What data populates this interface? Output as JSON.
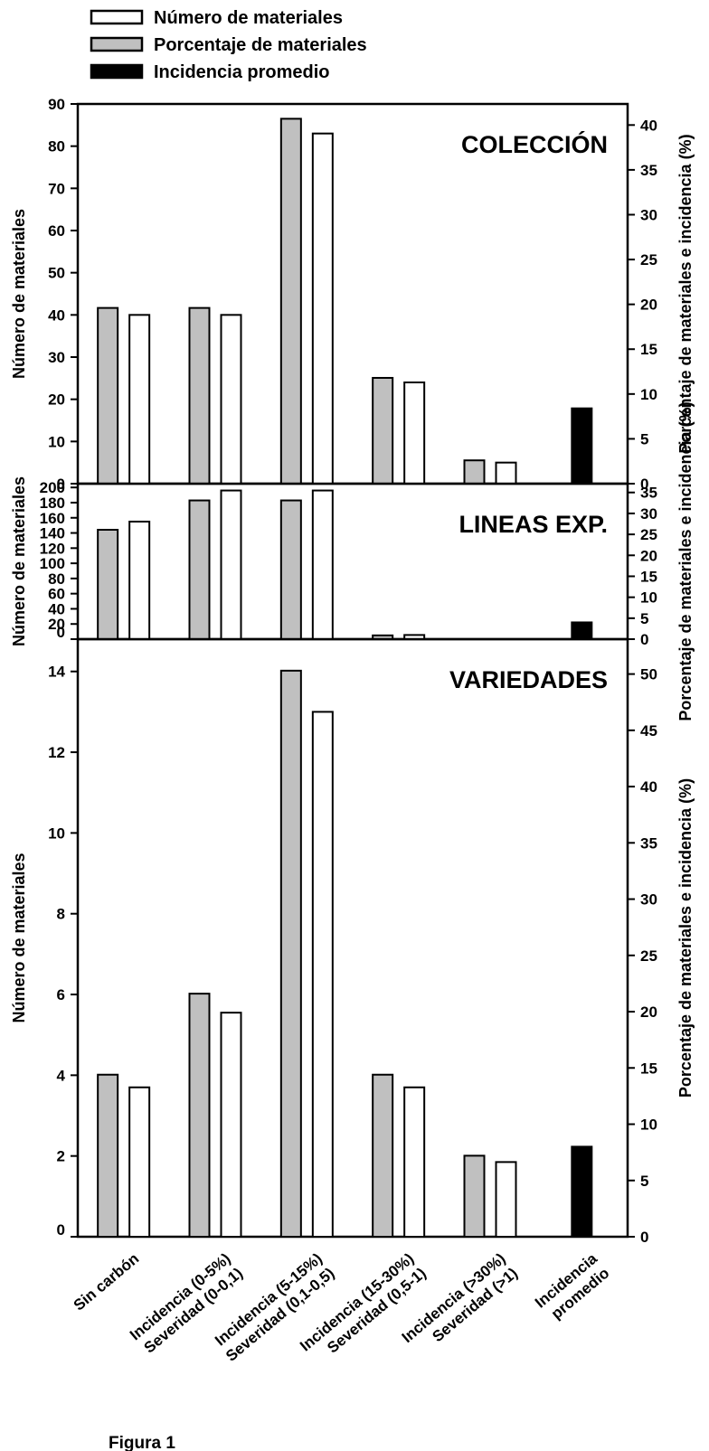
{
  "colors": {
    "number_fill": "#ffffff",
    "percent_fill": "#c0c0c0",
    "incidence_fill": "#000000",
    "stroke": "#000000"
  },
  "legend": [
    {
      "key": "number",
      "label": "Número de materiales"
    },
    {
      "key": "percent",
      "label": "Porcentaje de materiales"
    },
    {
      "key": "incidence",
      "label": "Incidencia promedio"
    }
  ],
  "figure_label": "Figura 1",
  "chart_data": {
    "type": "bar",
    "categories": [
      [
        "Sin carbón"
      ],
      [
        "Incidencia (0-5%)",
        "Severidad (0-0,1)"
      ],
      [
        "Incidencia (5-15%)",
        "Severidad (0,1-0,5)"
      ],
      [
        "Incidencia (15-30%)",
        "Severidad (0,5-1)"
      ],
      [
        "Incidencia (>30%)",
        "Severidad (>1)"
      ],
      [
        "Incidencia",
        "promedio"
      ]
    ],
    "grid": false,
    "legend_position": "top-left",
    "panels": [
      {
        "title": "COLECCIÓN",
        "ylabel": "Número de materiales",
        "y2label": "Porcentaje de materiales e incidencia (%)",
        "ylim": [
          0,
          90
        ],
        "yticks": [
          0,
          10,
          20,
          30,
          40,
          50,
          60,
          70,
          80,
          90
        ],
        "y2lim": [
          0,
          42.35
        ],
        "y2ticks": [
          0,
          5,
          10,
          15,
          20,
          25,
          30,
          35,
          40
        ],
        "series": [
          {
            "name": "Porcentaje de materiales",
            "axis": "right",
            "values": [
              19.6,
              19.6,
              40.7,
              11.8,
              2.6,
              null
            ]
          },
          {
            "name": "Número de materiales",
            "axis": "left",
            "values": [
              40,
              40,
              83,
              24,
              5,
              null
            ]
          },
          {
            "name": "Incidencia promedio",
            "axis": "right",
            "values": [
              null,
              null,
              null,
              null,
              null,
              8.4
            ]
          }
        ]
      },
      {
        "title": "LINEAS EXP.",
        "ylabel": "Número de materiales",
        "y2label": "Porcentaje de materiales e incidencia (%)",
        "ylim": [
          0,
          205
        ],
        "yticks": [
          0,
          20,
          40,
          60,
          80,
          100,
          120,
          140,
          160,
          180,
          200
        ],
        "y2lim": [
          0,
          37.1
        ],
        "y2ticks": [
          0,
          5,
          10,
          15,
          20,
          25,
          30,
          35
        ],
        "series": [
          {
            "name": "Porcentaje de materiales",
            "axis": "right",
            "values": [
              26.1,
              33.1,
              33.1,
              0.9,
              null,
              null
            ]
          },
          {
            "name": "Número de materiales",
            "axis": "left",
            "values": [
              155,
              196,
              196,
              5.5,
              null,
              null
            ]
          },
          {
            "name": "Incidencia promedio",
            "axis": "right",
            "values": [
              null,
              null,
              null,
              null,
              null,
              4.0
            ]
          }
        ]
      },
      {
        "title": "VARIEDADES",
        "ylabel": "Número de materiales",
        "y2label": "Porcentaje de materiales e incidencia (%)",
        "ylim": [
          0,
          14.8
        ],
        "yticks": [
          0,
          2,
          4,
          6,
          8,
          10,
          12,
          14
        ],
        "y2lim": [
          0,
          53.1
        ],
        "y2ticks": [
          0,
          5,
          10,
          15,
          20,
          25,
          30,
          35,
          40,
          45,
          50
        ],
        "series": [
          {
            "name": "Porcentaje de materiales",
            "axis": "right",
            "values": [
              14.4,
              21.6,
              50.3,
              14.4,
              7.2,
              null
            ]
          },
          {
            "name": "Número de materiales",
            "axis": "left",
            "values": [
              3.7,
              5.55,
              13,
              3.7,
              1.85,
              null
            ]
          },
          {
            "name": "Incidencia promedio",
            "axis": "right",
            "values": [
              null,
              null,
              null,
              null,
              null,
              8.0
            ]
          }
        ]
      }
    ]
  }
}
